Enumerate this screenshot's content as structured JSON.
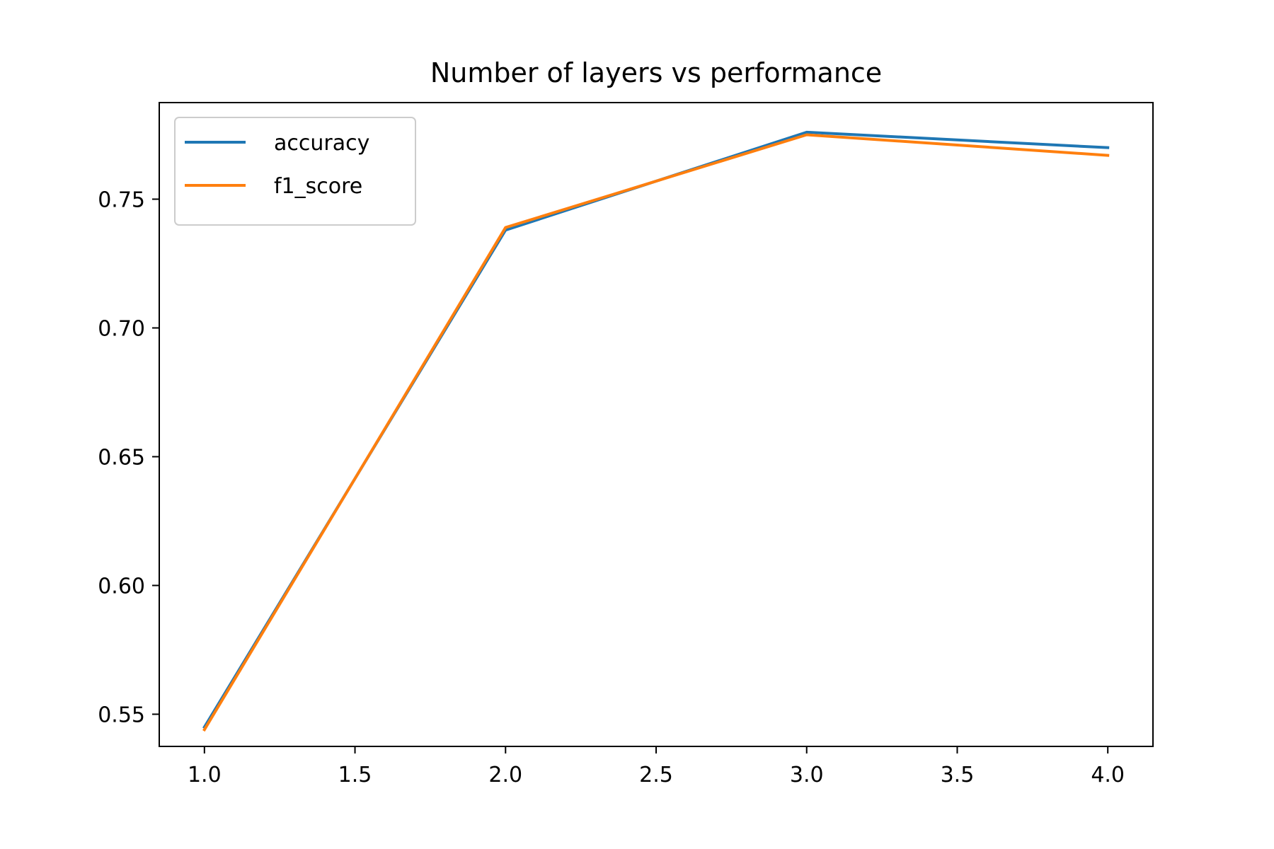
{
  "chart_data": {
    "type": "line",
    "title": "Number of layers vs performance",
    "xlabel": "",
    "ylabel": "",
    "x": [
      1.0,
      2.0,
      3.0,
      4.0
    ],
    "xlim": [
      0.85,
      4.15
    ],
    "ylim": [
      0.5375,
      0.7875
    ],
    "xticks": [
      1.0,
      1.5,
      2.0,
      2.5,
      3.0,
      3.5,
      4.0
    ],
    "xtick_labels": [
      "1.0",
      "1.5",
      "2.0",
      "2.5",
      "3.0",
      "3.5",
      "4.0"
    ],
    "yticks": [
      0.55,
      0.6,
      0.65,
      0.7,
      0.75
    ],
    "ytick_labels": [
      "0.55",
      "0.60",
      "0.65",
      "0.70",
      "0.75"
    ],
    "grid": false,
    "legend_position": "top-left",
    "series": [
      {
        "name": "accuracy",
        "color": "#1f77b4",
        "values": [
          0.545,
          0.738,
          0.776,
          0.77
        ]
      },
      {
        "name": "f1_score",
        "color": "#ff7f0e",
        "values": [
          0.544,
          0.739,
          0.775,
          0.767
        ]
      }
    ]
  }
}
